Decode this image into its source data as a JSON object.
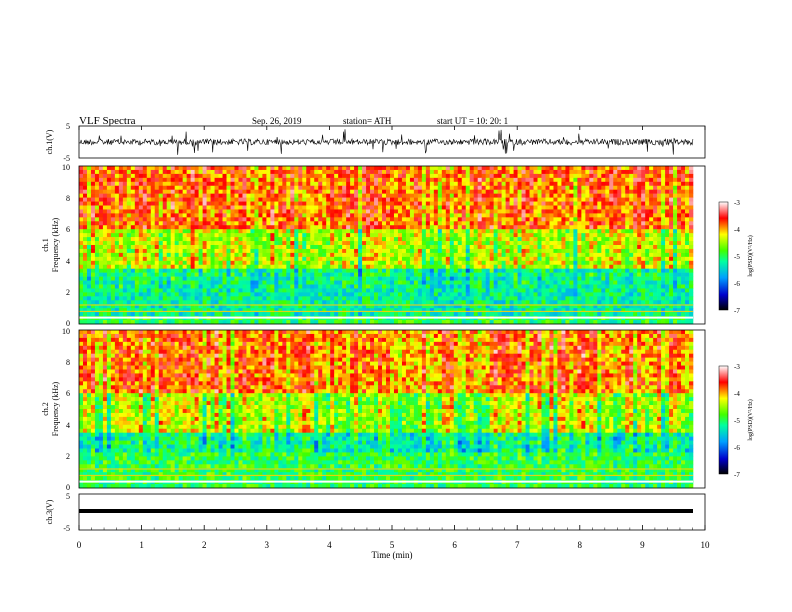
{
  "header": {
    "title": "VLF  Spectra",
    "date": "Sep. 26, 2019",
    "station": "station= ATH",
    "start": "start  UT  =     10: 20: 1"
  },
  "chart_data": [
    {
      "type": "line",
      "ylabel": "ch.1(V)",
      "ylim": [
        -5,
        5
      ],
      "yticks": [
        "5",
        "-5"
      ],
      "description_signal": "noisy waveform centered near 0 V with spikes to about +4 and -4 V"
    },
    {
      "type": "heatmap",
      "ylabel_top": "ch.1",
      "ylabel": "Frequency  (kHz)",
      "ylim": [
        0,
        10
      ],
      "yticks": [
        "0",
        "2",
        "4",
        "6",
        "8",
        "10"
      ],
      "colorbar": {
        "label": "log(PSD)(V²/Hz)",
        "range": [
          -7,
          -3
        ],
        "ticks": [
          "-3",
          "-4",
          "-5",
          "-6",
          "-7"
        ]
      }
    },
    {
      "type": "heatmap",
      "ylabel_top": "ch.2",
      "ylabel": "Frequency  (kHz)",
      "ylim": [
        0,
        10
      ],
      "yticks": [
        "0",
        "2",
        "4",
        "6",
        "8",
        "10"
      ],
      "colorbar": {
        "label": "log(PSD)(V²/Hz)",
        "range": [
          -7,
          -3
        ],
        "ticks": [
          "-3",
          "-4",
          "-5",
          "-6",
          "-7"
        ]
      }
    },
    {
      "type": "line",
      "ylabel": "ch.3(V)",
      "ylim": [
        -5,
        5
      ],
      "yticks": [
        "5",
        "-5"
      ]
    }
  ],
  "xaxis": {
    "label": "Time  (min)",
    "range": [
      0,
      10
    ],
    "ticks": [
      "0",
      "1",
      "2",
      "3",
      "4",
      "5",
      "6",
      "7",
      "8",
      "9",
      "10"
    ]
  },
  "colors": {
    "spectrum_scale": [
      "#000000",
      "#0000ff",
      "#00c8ff",
      "#00ff00",
      "#ffff00",
      "#ff0000",
      "#ffffff"
    ]
  }
}
